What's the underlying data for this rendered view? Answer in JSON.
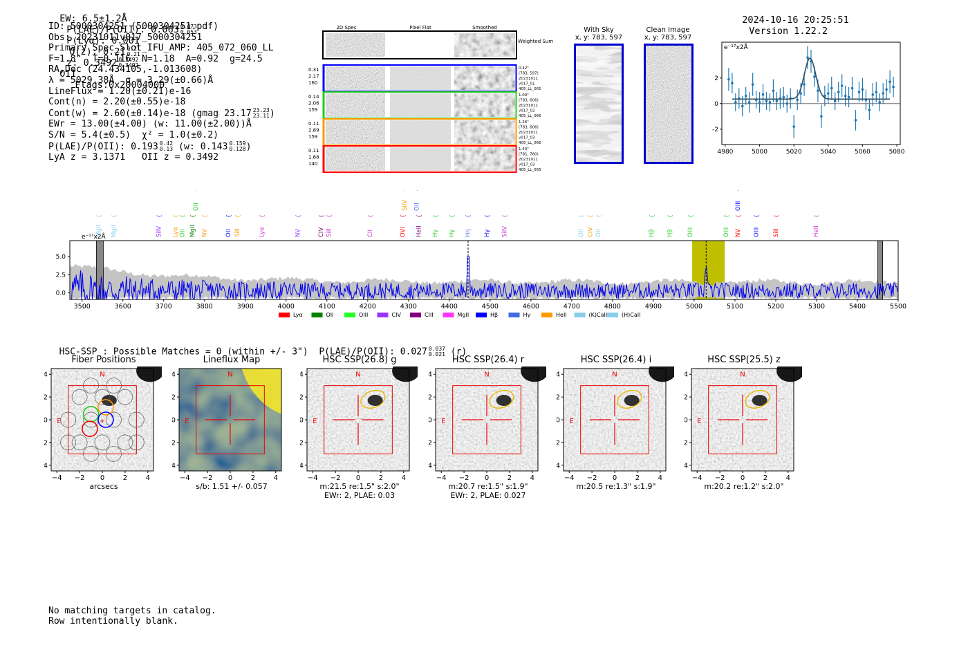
{
  "header": {
    "ew": "EW: 6.5±1.2Å",
    "plae": "P(LAE)/P(OII): 0.063",
    "plae_hi": "0.073",
    "plae_lo": "0.053",
    "plya": "P(Lyα): 0.001",
    "q": "Q(z): 0.21",
    "q_hi": "0.21",
    "q_lo": "0.21",
    "z": "z: 0.3492",
    "z_hi": "0.3492",
    "z_lo": "0.3492",
    "z_line": "OII",
    "flags": "Flags:0x20004000",
    "timestamp": "2024-10-16 20:25:51",
    "version": "Version 1.22.2"
  },
  "info": {
    "id": "ID: 5000304251 (5000304251.pdf)",
    "obs": "Obs: 20231011v017_5000304251",
    "primary": "Primary Spec_Slot_IFU_AMP: 405_072_060_LL",
    "fields": "F=1.8\"  T=0.116  N=1.18  A=0.92  g=24.5",
    "radec": "RA,Dec (24.434105,-1.013608)",
    "lambda": "λ = 5029.38Å  σ = 3.29(±0.66)Å",
    "lineflux": "LineFlux = 1.20(±0.21)e-16",
    "contn": "Cont(n) = 2.20(±0.55)e-18",
    "contw": "Cont(w) = 2.60(±0.14)e-18 (gmag 23.17",
    "contw_hi": "23.23",
    "contw_lo": "23.11",
    "ewr": "EWr = 13.00(±4.00) (w: 11.00(±2.00))Å",
    "sn": "S/N = 5.4(±0.5)  χ² = 1.0(±0.2)",
    "plae2": "P(LAE)/P(OII): 0.193",
    "plae2_hi": "0.42",
    "plae2_lo": "0.13",
    "plae2_w": "(w: 0.143",
    "plae2_w_hi": "0.159",
    "plae2_w_lo": "0.128",
    "lya_z": "LyA z = 3.1371   OII z = 0.3492"
  },
  "cutouts": {
    "col_titles": [
      "2D Spec",
      "Pixel Flat",
      "Smoothed"
    ],
    "weighted_sum": "Weighted Sum",
    "rows": [
      {
        "left": [
          "0.31",
          "2.17",
          "160"
        ],
        "right": [
          "0.42\"",
          "(783, 597)",
          "20231011",
          "v017_01",
          "405_LL_065"
        ],
        "color": "#0000ff"
      },
      {
        "left": [
          "0.14",
          "2.06",
          "159"
        ],
        "right": [
          "1.09\"",
          "(783, 606)",
          "20231011",
          "v017_02",
          "405_LL_066"
        ],
        "color": "#22cc22"
      },
      {
        "left": [
          "0.11",
          "2.89",
          "159"
        ],
        "right": [
          "1.26\"",
          "(783, 606)",
          "20231011",
          "v017_03",
          "405_LL_066"
        ],
        "color": "#ff9900"
      },
      {
        "left": [
          "0.11",
          "1.68",
          "140"
        ],
        "right": [
          "1.40\"",
          "(781, 780)",
          "20231011",
          "v017_03",
          "405_LL_065"
        ],
        "color": "#ff0000"
      }
    ]
  },
  "sky": {
    "with_sky_title": "With Sky",
    "with_sky_xy": "x, y: 783, 597",
    "clean_title": "Clean Image",
    "clean_xy": "x, y: 783, 597"
  },
  "fit_chart": {
    "type": "line",
    "ylabel": "e⁻¹⁷x2Å",
    "xlim": [
      4978,
      5082
    ],
    "ylim": [
      -3.2,
      4.8
    ],
    "xticks": [
      4980,
      5000,
      5020,
      5040,
      5060,
      5080
    ],
    "yticks": [
      -2,
      0,
      2
    ],
    "fit_baseline": 0.35,
    "fit_peak": 3.2,
    "fit_center": 5029.4,
    "fit_sigma": 3.29,
    "fit_range": [
      4984,
      5076
    ],
    "x": [
      4982,
      4984,
      4986,
      4988,
      4990,
      4992,
      4994,
      4996,
      4998,
      5000,
      5002,
      5004,
      5006,
      5008,
      5010,
      5012,
      5014,
      5016,
      5018,
      5020,
      5022,
      5024,
      5026,
      5028,
      5030,
      5032,
      5034,
      5036,
      5038,
      5040,
      5042,
      5044,
      5046,
      5048,
      5050,
      5052,
      5054,
      5056,
      5058,
      5060,
      5062,
      5064,
      5066,
      5068,
      5070,
      5072,
      5074,
      5076,
      5078
    ],
    "y": [
      1.9,
      1.6,
      0.1,
      0.4,
      -0.2,
      0.6,
      0.1,
      1.5,
      0.3,
      0.1,
      0.7,
      0.2,
      0.1,
      1.0,
      0.2,
      0.4,
      0.5,
      0.0,
      0.4,
      -1.8,
      0.3,
      0.8,
      1.5,
      3.6,
      3.3,
      2.1,
      1.0,
      -1.0,
      0.6,
      0.8,
      1.2,
      0.2,
      0.9,
      1.4,
      0.6,
      0.5,
      1.2,
      -1.3,
      0.9,
      1.1,
      0.3,
      -0.5,
      0.7,
      0.9,
      0.1,
      0.8,
      1.1,
      1.7,
      1.3
    ],
    "err": [
      0.9,
      0.8,
      0.7,
      0.8,
      0.8,
      0.7,
      0.8,
      0.9,
      0.7,
      0.8,
      0.8,
      0.7,
      0.7,
      0.9,
      0.7,
      0.8,
      0.8,
      0.7,
      0.8,
      0.9,
      0.8,
      0.8,
      0.9,
      0.9,
      0.9,
      0.8,
      0.9,
      0.9,
      0.8,
      0.8,
      0.9,
      0.7,
      0.8,
      0.9,
      0.8,
      0.8,
      0.9,
      0.8,
      0.8,
      0.9,
      0.8,
      0.8,
      0.9,
      0.8,
      0.7,
      0.8,
      0.8,
      0.9,
      0.8
    ]
  },
  "spectrum": {
    "type": "line",
    "ylabel": "e⁻¹⁷x2Å",
    "xlim": [
      3470,
      5500
    ],
    "ylim": [
      -0.9,
      7.2
    ],
    "xticks": [
      3500,
      3600,
      3700,
      3800,
      3900,
      4000,
      4100,
      4200,
      4300,
      4400,
      4500,
      4600,
      4700,
      4800,
      4900,
      5000,
      5100,
      5200,
      5300,
      5400,
      5500
    ],
    "yticks": [
      0.0,
      2.5,
      5.0
    ],
    "highlight_band": [
      4995,
      5075
    ],
    "emission_marker": 5029.4,
    "mid_marker": 4446,
    "hatched_regions": [
      [
        3535,
        3552
      ],
      [
        5450,
        5462
      ]
    ],
    "line_labels": [
      {
        "wave": 3540,
        "label": "MgII",
        "color": "#87ceeb",
        "row": 0
      },
      {
        "wave": 3578,
        "label": "MgII",
        "color": "#87ceeb",
        "row": 0
      },
      {
        "wave": 3688,
        "label": "SiIV",
        "color": "#9933ff",
        "row": 0
      },
      {
        "wave": 3728,
        "label": "Lyα",
        "color": "#ff9900",
        "row": 0
      },
      {
        "wave": 3745,
        "label": "OII",
        "color": "#22cc22",
        "row": 0
      },
      {
        "wave": 3770,
        "label": "MgII",
        "color": "#008000",
        "row": 0
      },
      {
        "wave": 3800,
        "label": "NV",
        "color": "#ff9900",
        "row": 0
      },
      {
        "wave": 3778,
        "label": "OII",
        "color": "#22cc22",
        "row": 1
      },
      {
        "wave": 3858,
        "label": "OII",
        "color": "#0000ff",
        "row": 0
      },
      {
        "wave": 3880,
        "label": "SiII",
        "color": "#ff9900",
        "row": 0
      },
      {
        "wave": 3940,
        "label": "Lyα",
        "color": "#cc33cc",
        "row": 0
      },
      {
        "wave": 4028,
        "label": "NV",
        "color": "#9933ff",
        "row": 0
      },
      {
        "wave": 4085,
        "label": "CIV",
        "color": "#800080",
        "row": 0
      },
      {
        "wave": 4105,
        "label": "SiII",
        "color": "#cc33cc",
        "row": 0
      },
      {
        "wave": 4205,
        "label": "CII",
        "color": "#cc33cc",
        "row": 0
      },
      {
        "wave": 4285,
        "label": "OVI",
        "color": "#ff0000",
        "row": 0
      },
      {
        "wave": 4290,
        "label": "SiIV",
        "color": "#ff9900",
        "row": 1
      },
      {
        "wave": 4325,
        "label": "HeII",
        "color": "#800080",
        "row": 0
      },
      {
        "wave": 4320,
        "label": "OII",
        "color": "#4169e1",
        "row": 1
      },
      {
        "wave": 4365,
        "label": "Hγ",
        "color": "#22cc22",
        "row": 0
      },
      {
        "wave": 4405,
        "label": "Hγ",
        "color": "#22cc22",
        "row": 0
      },
      {
        "wave": 4445,
        "label": "Hη",
        "color": "#4169e1",
        "row": 0
      },
      {
        "wave": 4492,
        "label": "Hγ",
        "color": "#0000ff",
        "row": 0
      },
      {
        "wave": 4535,
        "label": "SiIV",
        "color": "#cc33cc",
        "row": 0
      },
      {
        "wave": 4722,
        "label": "OII",
        "color": "#87ceeb",
        "row": 0
      },
      {
        "wave": 4745,
        "label": "CIV",
        "color": "#ff9900",
        "row": 0
      },
      {
        "wave": 4765,
        "label": "OII",
        "color": "#87ceeb",
        "row": 0
      },
      {
        "wave": 4895,
        "label": "Hβ",
        "color": "#22cc22",
        "row": 0
      },
      {
        "wave": 4940,
        "label": "Hβ",
        "color": "#22cc22",
        "row": 0
      },
      {
        "wave": 4990,
        "label": "OIII",
        "color": "#22cc22",
        "row": 0
      },
      {
        "wave": 5078,
        "label": "OIII",
        "color": "#22cc22",
        "row": 0
      },
      {
        "wave": 5107,
        "label": "NV",
        "color": "#ff0000",
        "row": 0
      },
      {
        "wave": 5107,
        "label": "OIII",
        "color": "#0000ff",
        "row": 1
      },
      {
        "wave": 5152,
        "label": "OIII",
        "color": "#0000ff",
        "row": 0
      },
      {
        "wave": 5200,
        "label": "SiII",
        "color": "#ff0000",
        "row": 0
      },
      {
        "wave": 5298,
        "label": "HeII",
        "color": "#cc33cc",
        "row": 0
      }
    ],
    "legend": [
      {
        "label": "Lyα",
        "color": "#ff0000"
      },
      {
        "label": "OII",
        "color": "#008000"
      },
      {
        "label": "OIII",
        "color": "#22ff22"
      },
      {
        "label": "CIV",
        "color": "#9933ff"
      },
      {
        "label": "CIII",
        "color": "#800080"
      },
      {
        "label": "MgII",
        "color": "#ff33ff"
      },
      {
        "label": "Hβ",
        "color": "#0000ff"
      },
      {
        "label": "Hγ",
        "color": "#4169e1"
      },
      {
        "label": "HeII",
        "color": "#ff9900"
      },
      {
        "label": "(K)CaII",
        "color": "#87ceeb"
      },
      {
        "label": "(H)CaII",
        "color": "#87ceeb"
      }
    ]
  },
  "hsc": {
    "line": "HSC-SSP : Possible Matches = 0 (within +/- 3\")  P(LAE)/P(OII): 0.027",
    "hi": "0.037",
    "lo": "0.021",
    "band": "(r)"
  },
  "panels": [
    {
      "title": "Fiber Positions",
      "xlabel1": "arcsecs",
      "xlabel2": ""
    },
    {
      "title": "Lineflux Map",
      "xlabel1": "s/b: 1.51 +/- 0.057",
      "xlabel2": ""
    },
    {
      "title": "HSC SSP(26.8) g",
      "xlabel1": "m:21.5  re:1.5\"  s:2.0\"",
      "xlabel2": "EWr: 2, PLAE: 0.03"
    },
    {
      "title": "HSC SSP(26.4) r",
      "xlabel1": "m:20.7  re:1.5\"  s:1.9\"",
      "xlabel2": "EWr: 2, PLAE: 0.027"
    },
    {
      "title": "HSC SSP(26.4) i",
      "xlabel1": "m:20.5  re:1.3\"  s:1.9\"",
      "xlabel2": ""
    },
    {
      "title": "HSC SSP(25.5) z",
      "xlabel1": "m:20.2  re:1.2\"  s:2.0\"",
      "xlabel2": ""
    }
  ],
  "panel_axes": {
    "ticks": [
      -4,
      -2,
      0,
      2,
      4
    ],
    "north": "N",
    "east": "E"
  },
  "footer": {
    "line1": "No matching targets in catalog.",
    "line2": "Row intentionally blank."
  }
}
